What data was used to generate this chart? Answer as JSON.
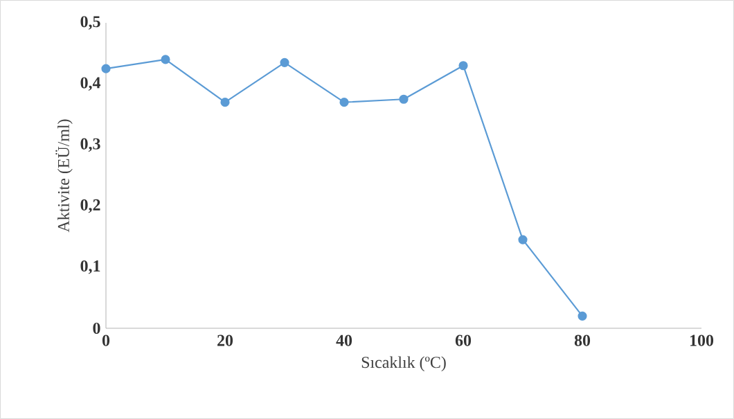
{
  "chart_data": {
    "type": "line",
    "xlabel": "Sıcaklık (ºC)",
    "ylabel": "Aktivite (EÜ/ml)",
    "x": [
      0,
      10,
      20,
      30,
      40,
      50,
      60,
      70,
      80
    ],
    "series": [
      {
        "color": "#5b9bd5",
        "values": [
          0.425,
          0.44,
          0.37,
          0.435,
          0.37,
          0.375,
          0.43,
          0.145,
          0.02
        ]
      }
    ],
    "xlim": [
      0,
      100
    ],
    "xticks": [
      0,
      20,
      40,
      60,
      80,
      100
    ],
    "ylim": [
      0,
      0.5
    ],
    "yticks": [
      0,
      {
        "value": 0.1,
        "label": "0,1"
      },
      {
        "value": 0.2,
        "label": "0,2"
      },
      {
        "value": 0.3,
        "label": "0,3"
      },
      {
        "value": 0.4,
        "label": "0,4"
      },
      {
        "value": 0.5,
        "label": "0,5"
      }
    ],
    "marker": "circle",
    "line_style": "solid"
  }
}
